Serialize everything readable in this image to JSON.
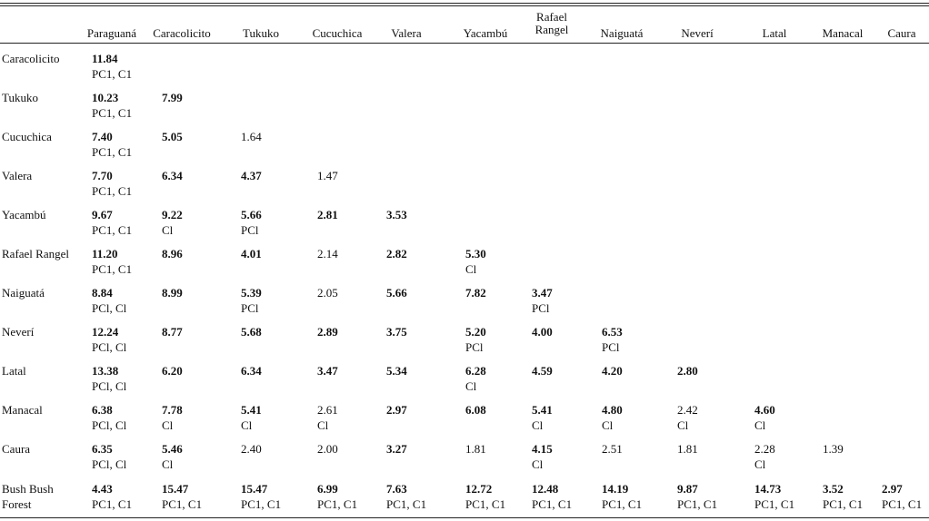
{
  "columns": [
    "Paraguaná",
    "Caracolicito",
    "Tukuko",
    "Cucuchica",
    "Valera",
    "Yacambú",
    "Rafael Rangel",
    "Naiguatá",
    "Neverí",
    "Latal",
    "Manacal",
    "Caura"
  ],
  "rows": [
    {
      "label": "Caracolicito",
      "cells": [
        {
          "v": "11.84",
          "b": true,
          "s": "PC1, C1"
        }
      ]
    },
    {
      "label": "Tukuko",
      "cells": [
        {
          "v": "10.23",
          "b": true,
          "s": "PC1, C1"
        },
        {
          "v": "7.99",
          "b": true,
          "s": ""
        }
      ]
    },
    {
      "label": "Cucuchica",
      "cells": [
        {
          "v": "7.40",
          "b": true,
          "s": "PC1, C1"
        },
        {
          "v": "5.05",
          "b": true,
          "s": ""
        },
        {
          "v": "1.64",
          "b": false,
          "s": ""
        }
      ]
    },
    {
      "label": "Valera",
      "cells": [
        {
          "v": "7.70",
          "b": true,
          "s": "PC1, C1"
        },
        {
          "v": "6.34",
          "b": true,
          "s": ""
        },
        {
          "v": "4.37",
          "b": true,
          "s": ""
        },
        {
          "v": "1.47",
          "b": false,
          "s": ""
        }
      ]
    },
    {
      "label": "Yacambú",
      "cells": [
        {
          "v": "9.67",
          "b": true,
          "s": "PC1, C1"
        },
        {
          "v": "9.22",
          "b": true,
          "s": "Cl"
        },
        {
          "v": "5.66",
          "b": true,
          "s": "PCl"
        },
        {
          "v": "2.81",
          "b": true,
          "s": ""
        },
        {
          "v": "3.53",
          "b": true,
          "s": ""
        }
      ]
    },
    {
      "label": "Rafael Rangel",
      "cells": [
        {
          "v": "11.20",
          "b": true,
          "s": "PC1, C1"
        },
        {
          "v": "8.96",
          "b": true,
          "s": ""
        },
        {
          "v": "4.01",
          "b": true,
          "s": ""
        },
        {
          "v": "2.14",
          "b": false,
          "s": ""
        },
        {
          "v": "2.82",
          "b": true,
          "s": ""
        },
        {
          "v": "5.30",
          "b": true,
          "s": "Cl"
        }
      ]
    },
    {
      "label": "Naiguatá",
      "cells": [
        {
          "v": "8.84",
          "b": true,
          "s": "PCl, Cl"
        },
        {
          "v": "8.99",
          "b": true,
          "s": ""
        },
        {
          "v": "5.39",
          "b": true,
          "s": "PCl"
        },
        {
          "v": "2.05",
          "b": false,
          "s": ""
        },
        {
          "v": "5.66",
          "b": true,
          "s": ""
        },
        {
          "v": "7.82",
          "b": true,
          "s": ""
        },
        {
          "v": "3.47",
          "b": true,
          "s": "PCl"
        }
      ]
    },
    {
      "label": "Neverí",
      "cells": [
        {
          "v": "12.24",
          "b": true,
          "s": "PCl, Cl"
        },
        {
          "v": "8.77",
          "b": true,
          "s": ""
        },
        {
          "v": "5.68",
          "b": true,
          "s": ""
        },
        {
          "v": "2.89",
          "b": true,
          "s": ""
        },
        {
          "v": "3.75",
          "b": true,
          "s": ""
        },
        {
          "v": "5.20",
          "b": true,
          "s": "PCl"
        },
        {
          "v": "4.00",
          "b": true,
          "s": ""
        },
        {
          "v": "6.53",
          "b": true,
          "s": "PCl"
        }
      ]
    },
    {
      "label": "Latal",
      "cells": [
        {
          "v": "13.38",
          "b": true,
          "s": "PCl, Cl"
        },
        {
          "v": "6.20",
          "b": true,
          "s": ""
        },
        {
          "v": "6.34",
          "b": true,
          "s": ""
        },
        {
          "v": "3.47",
          "b": true,
          "s": ""
        },
        {
          "v": "5.34",
          "b": true,
          "s": ""
        },
        {
          "v": "6.28",
          "b": true,
          "s": "Cl"
        },
        {
          "v": "4.59",
          "b": true,
          "s": ""
        },
        {
          "v": "4.20",
          "b": true,
          "s": ""
        },
        {
          "v": "2.80",
          "b": true,
          "s": ""
        }
      ]
    },
    {
      "label": "Manacal",
      "cells": [
        {
          "v": "6.38",
          "b": true,
          "s": "PCl, Cl"
        },
        {
          "v": "7.78",
          "b": true,
          "s": "Cl"
        },
        {
          "v": "5.41",
          "b": true,
          "s": "Cl"
        },
        {
          "v": "2.61",
          "b": false,
          "s": "Cl"
        },
        {
          "v": "2.97",
          "b": true,
          "s": ""
        },
        {
          "v": "6.08",
          "b": true,
          "s": ""
        },
        {
          "v": "5.41",
          "b": true,
          "s": "Cl"
        },
        {
          "v": "4.80",
          "b": true,
          "s": "Cl"
        },
        {
          "v": "2.42",
          "b": false,
          "s": "Cl"
        },
        {
          "v": "4.60",
          "b": true,
          "s": "Cl"
        }
      ]
    },
    {
      "label": "Caura",
      "cells": [
        {
          "v": "6.35",
          "b": true,
          "s": "PCl, Cl"
        },
        {
          "v": "5.46",
          "b": true,
          "s": "Cl"
        },
        {
          "v": "2.40",
          "b": false,
          "s": ""
        },
        {
          "v": "2.00",
          "b": false,
          "s": ""
        },
        {
          "v": "3.27",
          "b": true,
          "s": ""
        },
        {
          "v": "1.81",
          "b": false,
          "s": ""
        },
        {
          "v": "4.15",
          "b": true,
          "s": "Cl"
        },
        {
          "v": "2.51",
          "b": false,
          "s": ""
        },
        {
          "v": "1.81",
          "b": false,
          "s": ""
        },
        {
          "v": "2.28",
          "b": false,
          "s": "Cl"
        },
        {
          "v": "1.39",
          "b": false,
          "s": ""
        }
      ]
    },
    {
      "label": "Bush Bush Forest",
      "cells": [
        {
          "v": "4.43",
          "b": true,
          "s": "PC1, C1"
        },
        {
          "v": "15.47",
          "b": true,
          "s": "PC1, C1"
        },
        {
          "v": "15.47",
          "b": true,
          "s": "PC1, C1"
        },
        {
          "v": "6.99",
          "b": true,
          "s": "PC1, C1"
        },
        {
          "v": "7.63",
          "b": true,
          "s": "PC1, C1"
        },
        {
          "v": "12.72",
          "b": true,
          "s": "PC1, C1"
        },
        {
          "v": "12.48",
          "b": true,
          "s": "PC1, C1"
        },
        {
          "v": "14.19",
          "b": true,
          "s": "PC1, C1"
        },
        {
          "v": "9.87",
          "b": true,
          "s": "PC1, C1"
        },
        {
          "v": "14.73",
          "b": true,
          "s": "PC1, C1"
        },
        {
          "v": "3.52",
          "b": true,
          "s": "PC1, C1"
        },
        {
          "v": "2.97",
          "b": true,
          "s": "PC1, C1"
        }
      ]
    }
  ]
}
